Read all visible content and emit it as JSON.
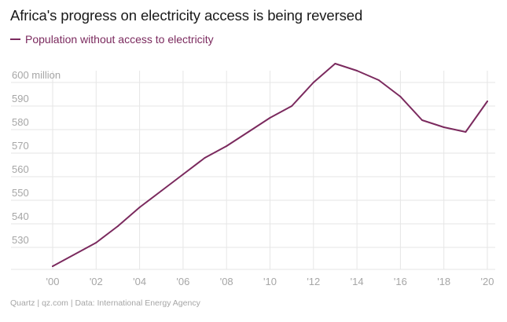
{
  "colors": {
    "series": "#7b2a5e",
    "grid": "#e6e6e6",
    "label": "#a6a6a6",
    "title": "#1a1a1a"
  },
  "chart_data": {
    "type": "line",
    "title": "Africa's progress on electricity access is being reversed",
    "series": [
      {
        "name": "Population without access to electricity",
        "x": [
          2000,
          2002,
          2003,
          2004,
          2005,
          2006,
          2007,
          2008,
          2009,
          2010,
          2011,
          2012,
          2013,
          2014,
          2015,
          2016,
          2017,
          2018,
          2019,
          2020
        ],
        "values": [
          522,
          532,
          539,
          547,
          554,
          561,
          568,
          573,
          579,
          585,
          590,
          600,
          608,
          605,
          601,
          594,
          584,
          581,
          579,
          592
        ]
      }
    ],
    "xlabel": "",
    "ylabel": "",
    "xlim": [
      2000,
      2020
    ],
    "ylim": [
      520,
      606
    ],
    "y_ticks": [
      {
        "value": 530,
        "label": "530"
      },
      {
        "value": 540,
        "label": "540"
      },
      {
        "value": 550,
        "label": "550"
      },
      {
        "value": 560,
        "label": "560"
      },
      {
        "value": 570,
        "label": "570"
      },
      {
        "value": 580,
        "label": "580"
      },
      {
        "value": 590,
        "label": "590"
      },
      {
        "value": 600,
        "label": "600 million"
      }
    ],
    "x_ticks": [
      {
        "value": 2000,
        "label": "'00"
      },
      {
        "value": 2002,
        "label": "'02"
      },
      {
        "value": 2004,
        "label": "'04"
      },
      {
        "value": 2006,
        "label": "'06"
      },
      {
        "value": 2008,
        "label": "'08"
      },
      {
        "value": 2010,
        "label": "'10"
      },
      {
        "value": 2012,
        "label": "'12"
      },
      {
        "value": 2014,
        "label": "'14"
      },
      {
        "value": 2016,
        "label": "'16"
      },
      {
        "value": 2018,
        "label": "'18"
      },
      {
        "value": 2020,
        "label": "'20"
      }
    ],
    "grid": true,
    "legend": "top-left"
  },
  "source": "Quartz | qz.com | Data: International Energy Agency"
}
